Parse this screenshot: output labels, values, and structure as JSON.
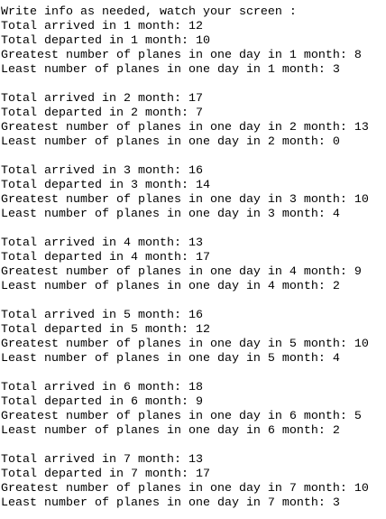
{
  "header": {
    "title": "Write info as needed, watch your screen :"
  },
  "blocks": [
    {
      "lines": [
        "Total arrived in 1 month: 12",
        "Total departed in 1 month: 10",
        "Greatest number of planes in one day in 1 month: 8",
        "Least number of planes in one day in 1 month: 3"
      ]
    },
    {
      "lines": [
        "Total arrived in 2 month: 17",
        "Total departed in 2 month: 7",
        "Greatest number of planes in one day in 2 month: 13",
        "Least number of planes in one day in 2 month: 0"
      ]
    },
    {
      "lines": [
        "Total arrived in 3 month: 16",
        "Total departed in 3 month: 14",
        "Greatest number of planes in one day in 3 month: 10",
        "Least number of planes in one day in 3 month: 4"
      ]
    },
    {
      "lines": [
        "Total arrived in 4 month: 13",
        "Total departed in 4 month: 17",
        "Greatest number of planes in one day in 4 month: 9",
        "Least number of planes in one day in 4 month: 2"
      ]
    },
    {
      "lines": [
        "Total arrived in 5 month: 16",
        "Total departed in 5 month: 12",
        "Greatest number of planes in one day in 5 month: 10",
        "Least number of planes in one day in 5 month: 4"
      ]
    },
    {
      "lines": [
        "Total arrived in 6 month: 18",
        "Total departed in 6 month: 9",
        "Greatest number of planes in one day in 6 month: 5",
        "Least number of planes in one day in 6 month: 2"
      ]
    },
    {
      "lines": [
        "Total arrived in 7 month: 13",
        "Total departed in 7 month: 17",
        "Greatest number of planes in one day in 7 month: 10",
        "Least number of planes in one day in 7 month: 3"
      ]
    }
  ]
}
